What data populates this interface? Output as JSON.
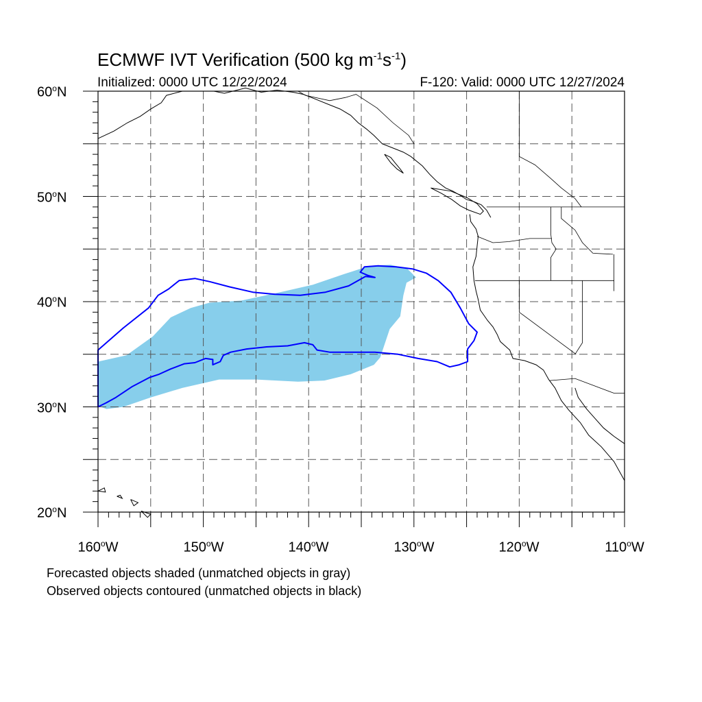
{
  "title": {
    "text": "ECMWF IVT Verification (500 kg m",
    "sup1": "-1",
    "mid": "s",
    "sup2": "-1",
    "end": ")"
  },
  "initialized": "Initialized: 0000 UTC 12/22/2024",
  "valid": "F-120: Valid: 0000 UTC 12/27/2024",
  "lat_labels": [
    {
      "num": "60",
      "hemi": "N"
    },
    {
      "num": "50",
      "hemi": "N"
    },
    {
      "num": "40",
      "hemi": "N"
    },
    {
      "num": "30",
      "hemi": "N"
    },
    {
      "num": "20",
      "hemi": "N"
    }
  ],
  "lon_labels": [
    {
      "num": "160",
      "hemi": "W"
    },
    {
      "num": "150",
      "hemi": "W"
    },
    {
      "num": "140",
      "hemi": "W"
    },
    {
      "num": "130",
      "hemi": "W"
    },
    {
      "num": "120",
      "hemi": "W"
    },
    {
      "num": "110",
      "hemi": "W"
    }
  ],
  "notes": {
    "line1": "Forecasted objects shaded (unmatched objects in gray)",
    "line2": "Observed objects contoured (unmatched objects in black)"
  },
  "map": {
    "extent": {
      "lon": [
        -160,
        -110
      ],
      "lat": [
        20,
        60
      ]
    },
    "grid_spacing_deg": 5,
    "colors": {
      "forecast_fill": "#87ceeb",
      "observed_contour": "#0000ff",
      "coast": "#000000",
      "grid": "#555555"
    }
  },
  "forecast_object": {
    "lonlat": [
      [
        -160,
        34.3
      ],
      [
        -157.3,
        34.9
      ],
      [
        -154.8,
        36.7
      ],
      [
        -153.1,
        38.5
      ],
      [
        -151.2,
        39.4
      ],
      [
        -149.4,
        39.9
      ],
      [
        -146.4,
        40.1
      ],
      [
        -142.7,
        40.9
      ],
      [
        -139.6,
        41.6
      ],
      [
        -136.7,
        42.6
      ],
      [
        -134.2,
        43.4
      ],
      [
        -132.2,
        43.5
      ],
      [
        -130.6,
        43.1
      ],
      [
        -129.8,
        42.3
      ],
      [
        -130.7,
        41.8
      ],
      [
        -131.0,
        40.6
      ],
      [
        -131.3,
        38.6
      ],
      [
        -132.3,
        37.4
      ],
      [
        -132.8,
        35.9
      ],
      [
        -133.2,
        34.7
      ],
      [
        -133.8,
        34.0
      ],
      [
        -136.0,
        33.1
      ],
      [
        -138.5,
        32.5
      ],
      [
        -141.0,
        32.4
      ],
      [
        -145.0,
        32.6
      ],
      [
        -148.5,
        32.6
      ],
      [
        -152.0,
        31.8
      ],
      [
        -155.0,
        30.9
      ],
      [
        -157.6,
        30.0
      ],
      [
        -159.2,
        29.8
      ],
      [
        -160,
        30.1
      ]
    ]
  },
  "observed_object": {
    "lonlat": [
      [
        -160,
        35.4
      ],
      [
        -157.6,
        37.5
      ],
      [
        -155.2,
        39.4
      ],
      [
        -154.3,
        40.6
      ],
      [
        -153.3,
        41.2
      ],
      [
        -152.3,
        42.0
      ],
      [
        -150.8,
        42.2
      ],
      [
        -149.4,
        41.9
      ],
      [
        -147.5,
        41.4
      ],
      [
        -145.3,
        40.9
      ],
      [
        -143.2,
        40.7
      ],
      [
        -140.8,
        40.6
      ],
      [
        -138.4,
        40.9
      ],
      [
        -136.2,
        41.5
      ],
      [
        -134.6,
        42.4
      ],
      [
        -133.7,
        42.3
      ],
      [
        -134.4,
        42.5
      ],
      [
        -135.1,
        42.8
      ],
      [
        -134.7,
        43.3
      ],
      [
        -133.4,
        43.4
      ],
      [
        -131.7,
        43.3
      ],
      [
        -130.1,
        43.1
      ],
      [
        -128.8,
        42.7
      ],
      [
        -127.7,
        42.0
      ],
      [
        -126.5,
        40.9
      ],
      [
        -125.6,
        39.4
      ],
      [
        -124.8,
        37.9
      ],
      [
        -124.0,
        37.1
      ],
      [
        -124.3,
        36.3
      ],
      [
        -124.9,
        35.5
      ],
      [
        -124.9,
        34.3
      ],
      [
        -125.7,
        34.0
      ],
      [
        -126.6,
        33.8
      ],
      [
        -127.8,
        34.3
      ],
      [
        -129.6,
        34.6
      ],
      [
        -131.5,
        35.0
      ],
      [
        -133.7,
        35.2
      ],
      [
        -136.0,
        35.2
      ],
      [
        -138.0,
        35.2
      ],
      [
        -139.2,
        35.4
      ],
      [
        -139.6,
        35.9
      ],
      [
        -140.4,
        36.1
      ],
      [
        -142.0,
        35.8
      ],
      [
        -144.0,
        35.7
      ],
      [
        -145.9,
        35.5
      ],
      [
        -147.4,
        35.2
      ],
      [
        -148.1,
        34.9
      ],
      [
        -148.4,
        34.3
      ],
      [
        -149.1,
        34.0
      ],
      [
        -149.1,
        34.5
      ],
      [
        -149.8,
        34.6
      ],
      [
        -150.8,
        34.2
      ],
      [
        -151.8,
        34.1
      ],
      [
        -153.1,
        33.6
      ],
      [
        -154.2,
        33.1
      ],
      [
        -155.1,
        32.8
      ],
      [
        -156.8,
        31.9
      ],
      [
        -158.3,
        30.9
      ],
      [
        -159.2,
        30.4
      ],
      [
        -160,
        30.0
      ]
    ]
  },
  "coastlines": [
    {
      "name": "alaska-south",
      "lonlat": [
        [
          -160,
          55.5
        ],
        [
          -158.5,
          56.2
        ],
        [
          -157.2,
          57.0
        ],
        [
          -156.0,
          57.6
        ],
        [
          -155.0,
          58.3
        ],
        [
          -154.0,
          58.9
        ],
        [
          -153.5,
          59.6
        ],
        [
          -152.0,
          60.0
        ]
      ]
    },
    {
      "name": "alaska-north-gulf",
      "lonlat": [
        [
          -149.0,
          60.0
        ],
        [
          -148.0,
          59.8
        ],
        [
          -146.0,
          60.3
        ],
        [
          -144.5,
          59.9
        ],
        [
          -143.0,
          60.1
        ],
        [
          -141.5,
          59.9
        ],
        [
          -140.5,
          59.7
        ],
        [
          -139.5,
          59.3
        ],
        [
          -138.0,
          58.7
        ],
        [
          -137.0,
          58.3
        ],
        [
          -136.0,
          57.7
        ],
        [
          -135.3,
          57.0
        ],
        [
          -134.5,
          56.4
        ],
        [
          -133.8,
          55.8
        ],
        [
          -133.0,
          55.0
        ],
        [
          -132.0,
          54.6
        ],
        [
          -131.0,
          54.2
        ],
        [
          -130.3,
          53.8
        ],
        [
          -129.2,
          52.9
        ],
        [
          -128.5,
          52.1
        ],
        [
          -127.8,
          51.4
        ],
        [
          -127.0,
          50.8
        ],
        [
          -126.3,
          50.5
        ],
        [
          -125.6,
          50.1
        ],
        [
          -125.0,
          49.7
        ],
        [
          -124.3,
          49.5
        ],
        [
          -123.6,
          49.2
        ],
        [
          -123.1,
          48.7
        ],
        [
          -122.7,
          48.0
        ]
      ]
    },
    {
      "name": "haida-gwaii",
      "lonlat": [
        [
          -132.8,
          54.0
        ],
        [
          -132.2,
          53.7
        ],
        [
          -131.8,
          53.2
        ],
        [
          -131.3,
          52.6
        ],
        [
          -131.0,
          52.2
        ],
        [
          -131.6,
          52.6
        ],
        [
          -132.2,
          53.2
        ],
        [
          -132.8,
          54.0
        ]
      ]
    },
    {
      "name": "vancouver-island",
      "lonlat": [
        [
          -128.4,
          50.8
        ],
        [
          -127.4,
          50.3
        ],
        [
          -126.4,
          49.7
        ],
        [
          -125.6,
          49.1
        ],
        [
          -124.8,
          48.7
        ],
        [
          -123.7,
          48.3
        ],
        [
          -123.4,
          48.6
        ],
        [
          -124.0,
          49.3
        ],
        [
          -125.0,
          49.9
        ],
        [
          -126.5,
          50.5
        ],
        [
          -128.4,
          50.8
        ]
      ]
    },
    {
      "name": "us-west-coast",
      "lonlat": [
        [
          -124.7,
          48.3
        ],
        [
          -124.6,
          47.6
        ],
        [
          -124.1,
          46.9
        ],
        [
          -123.9,
          46.2
        ],
        [
          -124.0,
          45.3
        ],
        [
          -124.1,
          44.3
        ],
        [
          -124.4,
          43.3
        ],
        [
          -124.3,
          42.0
        ],
        [
          -124.1,
          41.0
        ],
        [
          -123.9,
          40.2
        ],
        [
          -123.7,
          39.2
        ],
        [
          -123.0,
          38.2
        ],
        [
          -122.5,
          37.6
        ],
        [
          -122.1,
          36.9
        ],
        [
          -121.8,
          36.2
        ],
        [
          -120.9,
          35.4
        ],
        [
          -120.6,
          34.6
        ],
        [
          -119.5,
          34.4
        ],
        [
          -118.4,
          34.0
        ],
        [
          -117.7,
          33.5
        ],
        [
          -117.2,
          32.6
        ],
        [
          -116.6,
          31.8
        ],
        [
          -116.0,
          30.6
        ],
        [
          -115.3,
          29.7
        ],
        [
          -114.2,
          28.5
        ],
        [
          -113.4,
          27.3
        ],
        [
          -112.2,
          26.2
        ],
        [
          -111.0,
          24.8
        ],
        [
          -110.0,
          23.0
        ]
      ]
    },
    {
      "name": "gulf-of-california",
      "lonlat": [
        [
          -114.7,
          31.8
        ],
        [
          -114.4,
          30.9
        ],
        [
          -113.6,
          29.8
        ],
        [
          -112.8,
          28.9
        ],
        [
          -112.0,
          28.0
        ],
        [
          -111.0,
          27.2
        ],
        [
          -110.0,
          26.5
        ]
      ]
    },
    {
      "name": "hawaii-1",
      "lonlat": [
        [
          -160.0,
          22.0
        ],
        [
          -159.4,
          22.3
        ],
        [
          -159.3,
          21.9
        ],
        [
          -160.0,
          22.0
        ]
      ]
    },
    {
      "name": "hawaii-2",
      "lonlat": [
        [
          -158.2,
          21.5
        ],
        [
          -157.7,
          21.3
        ],
        [
          -157.9,
          21.6
        ],
        [
          -158.2,
          21.5
        ]
      ]
    },
    {
      "name": "hawaii-3",
      "lonlat": [
        [
          -156.9,
          21.2
        ],
        [
          -156.2,
          20.9
        ],
        [
          -156.6,
          20.6
        ],
        [
          -156.9,
          21.2
        ]
      ]
    },
    {
      "name": "hawaii-4",
      "lonlat": [
        [
          -155.9,
          20.1
        ],
        [
          -155.0,
          19.8
        ],
        [
          -155.3,
          19.5
        ],
        [
          -155.9,
          20.1
        ]
      ]
    }
  ],
  "borders": [
    {
      "name": "canada-us",
      "lonlat": [
        [
          -123.1,
          49.0
        ],
        [
          -110,
          49.0
        ]
      ]
    },
    {
      "name": "alaska-canada",
      "lonlat": [
        [
          -141.0,
          60.0
        ],
        [
          -140.3,
          59.6
        ],
        [
          -138.0,
          59.1
        ],
        [
          -136.5,
          59.4
        ],
        [
          -135.5,
          59.7
        ],
        [
          -133.5,
          58.4
        ],
        [
          -132.0,
          57.0
        ],
        [
          -130.5,
          55.8
        ],
        [
          -130.0,
          55.0
        ]
      ]
    },
    {
      "name": "bc-alberta",
      "lonlat": [
        [
          -120.0,
          60.0
        ],
        [
          -120.0,
          53.8
        ],
        [
          -118.5,
          53.0
        ],
        [
          -117.0,
          51.7
        ],
        [
          -116.0,
          50.8
        ],
        [
          -114.7,
          49.8
        ],
        [
          -114.1,
          49.0
        ]
      ]
    },
    {
      "name": "wa-or",
      "lonlat": [
        [
          -124.0,
          46.2
        ],
        [
          -122.5,
          45.6
        ],
        [
          -121.0,
          45.7
        ],
        [
          -119.0,
          46.0
        ],
        [
          -116.9,
          46.0
        ]
      ]
    },
    {
      "name": "idaho-west",
      "lonlat": [
        [
          -117.0,
          49.0
        ],
        [
          -117.0,
          46.4
        ],
        [
          -116.9,
          45.6
        ],
        [
          -116.5,
          45.0
        ],
        [
          -117.0,
          44.2
        ],
        [
          -117.0,
          42.0
        ]
      ]
    },
    {
      "name": "idaho-montana",
      "lonlat": [
        [
          -116.0,
          49.0
        ],
        [
          -116.0,
          47.9
        ],
        [
          -114.7,
          46.8
        ],
        [
          -114.0,
          45.6
        ],
        [
          -113.0,
          44.6
        ],
        [
          -111.1,
          44.5
        ]
      ]
    },
    {
      "name": "or-ca-nv-north",
      "lonlat": [
        [
          -124.2,
          42.0
        ],
        [
          -111.0,
          42.0
        ]
      ]
    },
    {
      "name": "ca-nv",
      "lonlat": [
        [
          -120.0,
          42.0
        ],
        [
          -120.0,
          39.0
        ],
        [
          -114.6,
          35.0
        ]
      ]
    },
    {
      "name": "nv-az",
      "lonlat": [
        [
          -114.0,
          42.0
        ],
        [
          -114.0,
          36.1
        ],
        [
          -114.7,
          35.0
        ]
      ]
    },
    {
      "name": "utah-east",
      "lonlat": [
        [
          -111.0,
          44.5
        ],
        [
          -111.0,
          41.0
        ]
      ]
    },
    {
      "name": "us-mexico",
      "lonlat": [
        [
          -117.1,
          32.5
        ],
        [
          -114.7,
          32.7
        ],
        [
          -111.0,
          31.3
        ],
        [
          -110,
          31.3
        ]
      ]
    },
    {
      "name": "sonora-sinaloa",
      "lonlat": [
        [
          -110.0,
          27.2
        ],
        [
          -110.0,
          27.2
        ]
      ]
    }
  ]
}
